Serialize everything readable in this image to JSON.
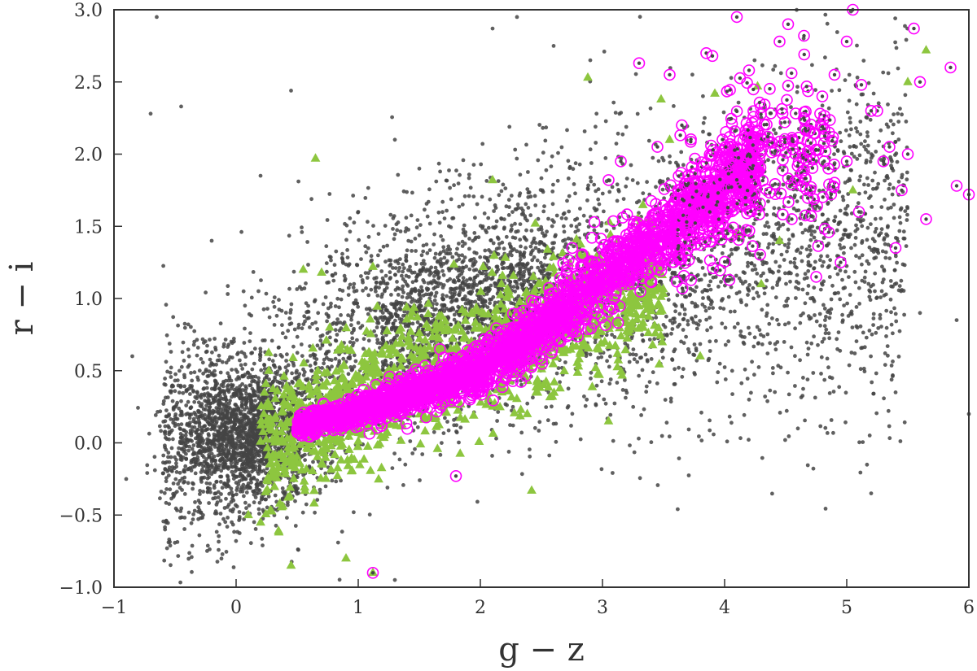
{
  "chart_data": {
    "type": "scatter",
    "xlabel": "g − z",
    "ylabel": "r − i",
    "xlim": [
      -1,
      6
    ],
    "ylim": [
      -1.0,
      3.0
    ],
    "x_ticks": [
      -1,
      0,
      1,
      2,
      3,
      4,
      5,
      6
    ],
    "x_tick_labels": [
      "−1",
      "0",
      "1",
      "2",
      "3",
      "4",
      "5",
      "6"
    ],
    "y_ticks": [
      -1.0,
      -0.5,
      0.0,
      0.5,
      1.0,
      1.5,
      2.0,
      2.5,
      3.0
    ],
    "y_tick_labels": [
      "−1.0",
      "−0.5",
      "0.0",
      "0.5",
      "1.0",
      "1.5",
      "2.0",
      "2.5",
      "3.0"
    ],
    "grid": false,
    "legend": "none",
    "series": [
      {
        "marker": "dot",
        "color": "#444444",
        "density_ridge": {
          "x": [
            -0.6,
            0.0,
            0.6,
            1.2,
            1.8,
            2.4,
            3.0,
            3.6,
            4.2,
            4.8,
            5.5
          ],
          "y": [
            0.0,
            0.05,
            0.45,
            0.75,
            0.9,
            1.05,
            1.1,
            1.2,
            1.35,
            1.4,
            1.5
          ],
          "spread_y": [
            0.45,
            0.45,
            0.45,
            0.45,
            0.45,
            0.45,
            0.45,
            0.5,
            0.55,
            0.6,
            0.65
          ]
        },
        "points": [
          [
            -0.65,
            2.95
          ],
          [
            -0.45,
            2.33
          ],
          [
            -0.7,
            2.28
          ],
          [
            0.45,
            2.44
          ],
          [
            1.3,
            2.1
          ],
          [
            2.1,
            2.87
          ],
          [
            2.3,
            2.95
          ],
          [
            2.6,
            2.75
          ],
          [
            2.9,
            2.65
          ],
          [
            -0.2,
            1.4
          ],
          [
            0.2,
            1.85
          ],
          [
            1.0,
            1.6
          ],
          [
            1.5,
            1.9
          ],
          [
            -0.85,
            0.6
          ],
          [
            -0.9,
            -0.25
          ],
          [
            -0.5,
            -0.35
          ],
          [
            4.2,
            0.3
          ],
          [
            4.6,
            0.1
          ],
          [
            5.2,
            -0.35
          ],
          [
            5.6,
            0.9
          ],
          [
            5.9,
            0.85
          ],
          [
            6.0,
            0.2
          ],
          [
            5.4,
            0.35
          ],
          [
            4.8,
            0.7
          ],
          [
            1.3,
            -0.95
          ]
        ]
      },
      {
        "marker": "triangle",
        "color": "#8dc63f",
        "trend": {
          "x": [
            0.2,
            0.6,
            1.0,
            1.5,
            2.0,
            2.5,
            3.0,
            3.5
          ],
          "y": [
            0.0,
            0.15,
            0.3,
            0.45,
            0.6,
            0.75,
            0.95,
            1.1
          ]
        },
        "points": [
          [
            0.65,
            1.97
          ],
          [
            0.55,
            1.2
          ],
          [
            0.7,
            1.18
          ],
          [
            1.12,
            1.22
          ],
          [
            2.1,
            1.82
          ],
          [
            2.88,
            2.53
          ],
          [
            3.48,
            2.38
          ],
          [
            3.55,
            2.1
          ],
          [
            3.92,
            2.42
          ],
          [
            4.27,
            2.47
          ],
          [
            4.1,
            1.45
          ],
          [
            4.45,
            1.4
          ],
          [
            4.3,
            1.1
          ],
          [
            5.05,
            1.75
          ],
          [
            5.5,
            2.5
          ],
          [
            5.65,
            2.72
          ],
          [
            0.1,
            -0.5
          ],
          [
            0.45,
            -0.85
          ],
          [
            0.9,
            -0.8
          ],
          [
            1.12,
            -0.9
          ],
          [
            2.42,
            -0.33
          ],
          [
            0.35,
            -0.62
          ],
          [
            3.05,
            0.15
          ],
          [
            3.8,
            0.6
          ],
          [
            2.45,
            1.52
          ]
        ]
      },
      {
        "marker": "ring",
        "color": "#ff00ff",
        "trend": {
          "x": [
            0.5,
            1.0,
            1.5,
            2.0,
            2.5,
            3.0,
            3.5,
            4.0,
            4.3
          ],
          "y": [
            0.12,
            0.22,
            0.35,
            0.5,
            0.78,
            1.15,
            1.45,
            1.78,
            2.0
          ]
        },
        "points": [
          [
            3.3,
            2.63
          ],
          [
            3.55,
            2.55
          ],
          [
            3.85,
            2.7
          ],
          [
            3.9,
            2.68
          ],
          [
            4.1,
            2.95
          ],
          [
            4.2,
            2.58
          ],
          [
            4.45,
            2.78
          ],
          [
            4.52,
            2.9
          ],
          [
            4.65,
            2.82
          ],
          [
            4.8,
            2.4
          ],
          [
            5.0,
            2.78
          ],
          [
            5.05,
            3.0
          ],
          [
            5.12,
            2.48
          ],
          [
            5.25,
            2.3
          ],
          [
            5.35,
            2.05
          ],
          [
            5.45,
            1.75
          ],
          [
            5.55,
            2.87
          ],
          [
            5.6,
            2.5
          ],
          [
            5.65,
            1.55
          ],
          [
            5.85,
            2.6
          ],
          [
            5.9,
            1.78
          ],
          [
            6.0,
            1.72
          ],
          [
            5.4,
            1.35
          ],
          [
            5.1,
            1.6
          ],
          [
            5.0,
            1.95
          ],
          [
            4.75,
            1.15
          ],
          [
            4.95,
            1.25
          ],
          [
            4.55,
            1.55
          ],
          [
            4.7,
            1.75
          ],
          [
            4.85,
            1.9
          ],
          [
            5.3,
            1.95
          ],
          [
            5.5,
            2.0
          ],
          [
            1.8,
            -0.23
          ],
          [
            1.12,
            -0.9
          ],
          [
            3.65,
            2.2
          ],
          [
            3.05,
            1.82
          ],
          [
            3.15,
            1.95
          ],
          [
            3.45,
            2.05
          ],
          [
            5.2,
            2.3
          ],
          [
            4.9,
            2.55
          ]
        ]
      }
    ]
  }
}
